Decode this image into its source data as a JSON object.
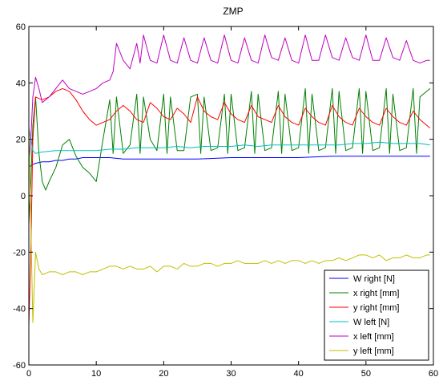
{
  "chart_data": {
    "type": "line",
    "title": "ZMP",
    "xlabel": "",
    "ylabel": "",
    "xlim": [
      0,
      60
    ],
    "ylim": [
      -60,
      60
    ],
    "xticks": [
      0,
      10,
      20,
      30,
      40,
      50,
      60
    ],
    "yticks": [
      -60,
      -40,
      -20,
      0,
      20,
      40,
      60
    ],
    "grid": false,
    "legend_position": "bottom-right",
    "series": [
      {
        "name": "W right [N]",
        "color": "#0000ff",
        "x": [
          0,
          0.5,
          1,
          2,
          3,
          4,
          5,
          6,
          7,
          8,
          9,
          10,
          12,
          14,
          16,
          18,
          20,
          25,
          30,
          35,
          40,
          45,
          50,
          55,
          59.5
        ],
        "y": [
          10,
          11,
          11.5,
          12,
          12,
          12.5,
          12.5,
          13,
          13,
          13.5,
          13.5,
          13.5,
          13.5,
          13,
          13,
          13,
          13,
          13,
          13.5,
          13.5,
          13.5,
          14,
          14,
          14,
          14
        ]
      },
      {
        "name": "x right [mm]",
        "color": "#008000",
        "x": [
          0,
          0.3,
          0.6,
          1,
          1.5,
          2,
          2.5,
          3,
          4,
          5,
          6,
          7,
          8,
          9,
          10,
          11,
          12,
          12.5,
          13,
          14,
          15,
          16,
          16.5,
          17,
          18,
          19,
          20,
          20.5,
          21,
          22,
          23,
          24,
          25,
          25.5,
          26,
          27,
          28,
          29,
          29.5,
          30,
          31,
          32,
          33,
          33.5,
          34,
          35,
          36,
          37,
          37.5,
          38,
          39,
          40,
          41,
          41.5,
          42,
          43,
          44,
          45,
          45.5,
          46,
          47,
          48,
          49,
          49.5,
          50,
          51,
          52,
          53,
          53.5,
          54,
          55,
          56,
          57,
          57.5,
          58,
          59,
          59.5
        ],
        "y": [
          -10,
          5,
          25,
          35,
          15,
          5,
          2,
          5,
          10,
          18,
          20,
          14,
          10,
          8,
          5,
          20,
          34,
          15,
          35,
          15,
          18,
          36,
          15,
          35,
          20,
          16,
          36,
          15,
          35,
          16,
          16,
          35,
          36,
          15,
          35,
          16,
          17,
          36,
          15,
          36,
          16,
          17,
          37,
          15,
          36,
          16,
          17,
          37,
          15,
          36,
          16,
          17,
          38,
          15,
          36,
          16,
          17,
          38,
          15,
          37,
          16,
          17,
          38,
          15,
          37,
          16,
          17,
          38,
          15,
          36,
          16,
          17,
          38,
          15,
          35,
          37,
          38
        ]
      },
      {
        "name": "y right [mm]",
        "color": "#ff0000",
        "x": [
          0,
          0.3,
          0.6,
          1,
          2,
          3,
          4,
          5,
          6,
          7,
          8,
          9,
          10,
          11,
          12,
          13,
          14,
          15,
          16,
          17,
          18,
          19,
          20,
          21,
          22,
          23,
          24,
          25,
          26,
          27,
          28,
          29,
          30,
          31,
          32,
          33,
          34,
          35,
          36,
          37,
          38,
          39,
          40,
          41,
          42,
          43,
          44,
          45,
          46,
          47,
          48,
          49,
          50,
          51,
          52,
          53,
          54,
          55,
          56,
          57,
          58,
          59,
          59.5
        ],
        "y": [
          -46,
          -20,
          20,
          35,
          34,
          35,
          37,
          38,
          37,
          34,
          30,
          27,
          25,
          26,
          27,
          30,
          32,
          30,
          27,
          26,
          33,
          31,
          28,
          27,
          31,
          29,
          26,
          35,
          30,
          28,
          27,
          33,
          29,
          27,
          26,
          32,
          28,
          27,
          26,
          32,
          28,
          26,
          25,
          31,
          28,
          26,
          25,
          32,
          28,
          26,
          25,
          31,
          28,
          26,
          25,
          31,
          28,
          26,
          25,
          30,
          27,
          25,
          24
        ]
      },
      {
        "name": "W left [N]",
        "color": "#00bfbf",
        "x": [
          0,
          0.3,
          0.6,
          1,
          2,
          4,
          6,
          8,
          10,
          12,
          14,
          16,
          18,
          20,
          22,
          24,
          26,
          28,
          30,
          32,
          34,
          36,
          38,
          40,
          42,
          44,
          46,
          48,
          50,
          52,
          54,
          56,
          58,
          59.5
        ],
        "y": [
          24,
          20,
          16,
          15,
          15.5,
          16,
          16,
          16,
          16,
          16.5,
          16.5,
          17,
          17,
          17,
          17.5,
          17,
          17.5,
          17.5,
          17.5,
          18,
          17.5,
          18,
          18,
          18,
          18,
          18,
          18,
          18.5,
          18.5,
          19,
          18.5,
          18.5,
          18.5,
          18
        ]
      },
      {
        "name": "x left [mm]",
        "color": "#bf00bf",
        "x": [
          0,
          0.3,
          0.6,
          1,
          1.5,
          2,
          3,
          4,
          5,
          6,
          7,
          8,
          9,
          10,
          11,
          12,
          12.5,
          13,
          14,
          15,
          16,
          16.5,
          17,
          18,
          19,
          20,
          21,
          22,
          23,
          24,
          25,
          26,
          27,
          28,
          29,
          30,
          31,
          32,
          33,
          34,
          35,
          36,
          37,
          38,
          39,
          40,
          41,
          42,
          43,
          44,
          45,
          46,
          47,
          48,
          49,
          50,
          51,
          52,
          53,
          54,
          55,
          56,
          57,
          58,
          59,
          59.5
        ],
        "y": [
          10,
          20,
          35,
          42,
          38,
          33,
          35,
          38,
          41,
          38,
          37,
          36,
          37,
          38,
          40,
          41,
          44,
          54,
          48,
          45,
          54,
          47,
          57,
          48,
          47,
          57,
          48,
          47,
          56,
          48,
          47,
          56,
          48,
          47,
          57,
          48,
          47,
          56,
          48,
          47,
          57,
          49,
          48,
          56,
          48,
          47,
          57,
          48,
          48,
          57,
          49,
          48,
          56,
          49,
          48,
          57,
          48,
          48,
          56,
          49,
          48,
          55,
          48,
          47,
          48,
          48
        ]
      },
      {
        "name": "y left [mm]",
        "color": "#bfbf00",
        "x": [
          0,
          0.3,
          0.6,
          1,
          1.5,
          2,
          3,
          4,
          5,
          6,
          7,
          8,
          9,
          10,
          11,
          12,
          13,
          14,
          15,
          16,
          17,
          18,
          19,
          20,
          21,
          22,
          23,
          24,
          25,
          26,
          27,
          28,
          29,
          30,
          31,
          32,
          33,
          34,
          35,
          36,
          37,
          38,
          39,
          40,
          41,
          42,
          43,
          44,
          45,
          46,
          47,
          48,
          49,
          50,
          51,
          52,
          53,
          54,
          55,
          56,
          57,
          58,
          59,
          59.5
        ],
        "y": [
          25,
          -10,
          -45,
          -20,
          -26,
          -28,
          -27,
          -27,
          -28,
          -27,
          -27,
          -28,
          -27,
          -27,
          -26,
          -25,
          -25,
          -26,
          -25,
          -26,
          -26,
          -25,
          -27,
          -25,
          -25,
          -26,
          -24,
          -25,
          -25,
          -24,
          -24,
          -25,
          -24,
          -24,
          -23,
          -24,
          -24,
          -24,
          -23,
          -24,
          -23,
          -24,
          -23,
          -23,
          -24,
          -23,
          -24,
          -23,
          -23,
          -22,
          -23,
          -22,
          -21,
          -21,
          -22,
          -21,
          -23,
          -22,
          -22,
          -21,
          -22,
          -22,
          -21,
          -21
        ]
      }
    ]
  }
}
